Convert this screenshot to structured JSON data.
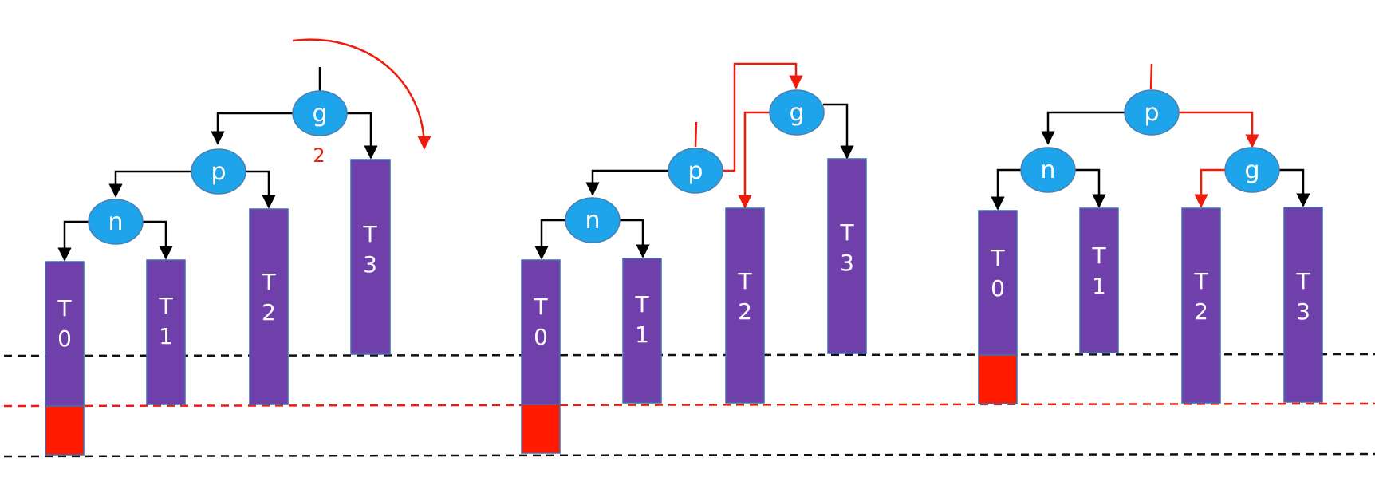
{
  "colors": {
    "node_fill": "#1ea4ea",
    "node_stroke": "#4a7fb0",
    "subtree_fill": "#7040aa",
    "subtree_stroke": "#3f6fb0",
    "overflow_fill": "#ff1a00",
    "edge_black": "#000000",
    "edge_red": "#ee1c0c",
    "level_black": "#111111",
    "level_red": "#ee1c0c"
  },
  "panels": [
    {
      "id": "before",
      "nodes": {
        "g": "g",
        "p": "p",
        "n": "n"
      },
      "subtrees": {
        "t0": "T\n0",
        "t1": "T\n1",
        "t2": "T\n2",
        "t3": "T\n3"
      },
      "balance_factor": "2",
      "rotation_arrow_icon": "clockwise-rotation-arrow-icon"
    },
    {
      "id": "during",
      "nodes": {
        "g": "g",
        "p": "p",
        "n": "n"
      },
      "subtrees": {
        "t0": "T\n0",
        "t1": "T\n1",
        "t2": "T\n2",
        "t3": "T\n3"
      }
    },
    {
      "id": "after",
      "nodes": {
        "p": "p",
        "n": "n",
        "g": "g"
      },
      "subtrees": {
        "t0": "T\n0",
        "t1": "T\n1",
        "t2": "T\n2",
        "t3": "T\n3"
      }
    }
  ]
}
